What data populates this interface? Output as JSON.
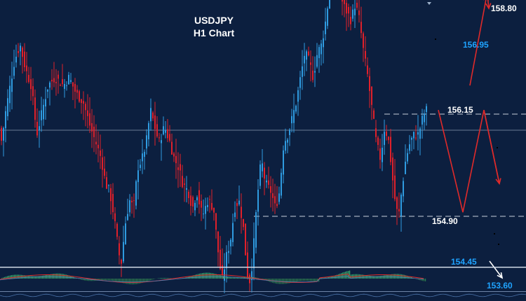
{
  "chart_data": {
    "type": "candlestick",
    "title": "USDJPY",
    "subtitle": "H1 Chart",
    "colors": {
      "background": "#0c1f3f",
      "bull": "#2f9be0",
      "bear": "#e0202a",
      "level_label": "#ffffff",
      "target_label": "#1fa3ff",
      "arrow": "#e02a2a",
      "macd_pos": "#3cb371",
      "macd_neg": "#2e7d4f"
    },
    "levels": [
      {
        "value": "158.80",
        "role": "target-up",
        "price": 158.8
      },
      {
        "value": "156.95",
        "role": "target",
        "price": 156.95
      },
      {
        "value": "156.15",
        "role": "resistance",
        "price": 156.15
      },
      {
        "value": "154.90",
        "role": "support",
        "price": 154.9
      },
      {
        "value": "154.45",
        "role": "target",
        "price": 154.45
      },
      {
        "value": "153.60",
        "role": "target-down",
        "price": 153.6
      }
    ],
    "path": [
      [
        0,
        156.0
      ],
      [
        4,
        155.8
      ],
      [
        8,
        156.1
      ],
      [
        14,
        156.4
      ],
      [
        22,
        156.8
      ],
      [
        30,
        157.0
      ],
      [
        38,
        156.7
      ],
      [
        46,
        156.5
      ],
      [
        54,
        155.9
      ],
      [
        62,
        156.2
      ],
      [
        70,
        156.5
      ],
      [
        80,
        156.6
      ],
      [
        92,
        156.5
      ],
      [
        100,
        156.6
      ],
      [
        110,
        156.4
      ],
      [
        120,
        156.3
      ],
      [
        130,
        156.0
      ],
      [
        138,
        155.8
      ],
      [
        146,
        155.6
      ],
      [
        152,
        155.3
      ],
      [
        158,
        155.2
      ],
      [
        164,
        154.9
      ],
      [
        170,
        154.5
      ],
      [
        174,
        154.3
      ],
      [
        180,
        154.8
      ],
      [
        186,
        155.1
      ],
      [
        192,
        155.0
      ],
      [
        198,
        155.5
      ],
      [
        204,
        155.6
      ],
      [
        210,
        155.8
      ],
      [
        216,
        156.2
      ],
      [
        222,
        156.0
      ],
      [
        228,
        155.8
      ],
      [
        236,
        156.0
      ],
      [
        244,
        155.8
      ],
      [
        250,
        155.6
      ],
      [
        256,
        155.5
      ],
      [
        262,
        155.3
      ],
      [
        270,
        155.2
      ],
      [
        276,
        155.0
      ],
      [
        282,
        155.2
      ],
      [
        290,
        154.9
      ],
      [
        298,
        155.1
      ],
      [
        306,
        155.0
      ],
      [
        312,
        154.5
      ],
      [
        318,
        154.1
      ],
      [
        324,
        154.4
      ],
      [
        330,
        154.6
      ],
      [
        336,
        155.0
      ],
      [
        342,
        155.1
      ],
      [
        348,
        154.8
      ],
      [
        354,
        154.2
      ],
      [
        358,
        154.1
      ],
      [
        362,
        154.4
      ],
      [
        368,
        155.1
      ],
      [
        374,
        155.6
      ],
      [
        380,
        155.3
      ],
      [
        388,
        155.2
      ],
      [
        394,
        155.0
      ],
      [
        400,
        155.2
      ],
      [
        406,
        155.8
      ],
      [
        412,
        155.9
      ],
      [
        418,
        156.1
      ],
      [
        424,
        156.3
      ],
      [
        430,
        156.6
      ],
      [
        436,
        156.9
      ],
      [
        442,
        156.8
      ],
      [
        448,
        156.6
      ],
      [
        454,
        156.9
      ],
      [
        460,
        157.0
      ],
      [
        466,
        157.3
      ],
      [
        472,
        157.7
      ],
      [
        478,
        157.9
      ],
      [
        484,
        157.8
      ],
      [
        490,
        157.5
      ],
      [
        496,
        157.4
      ],
      [
        502,
        157.3
      ],
      [
        508,
        157.5
      ],
      [
        514,
        157.3
      ],
      [
        520,
        156.9
      ],
      [
        526,
        156.6
      ],
      [
        532,
        156.2
      ],
      [
        538,
        155.8
      ],
      [
        544,
        155.6
      ],
      [
        550,
        156.0
      ],
      [
        556,
        155.8
      ],
      [
        562,
        155.3
      ],
      [
        566,
        155.0
      ],
      [
        570,
        154.9
      ],
      [
        574,
        155.2
      ],
      [
        580,
        155.6
      ],
      [
        586,
        155.8
      ],
      [
        592,
        155.9
      ],
      [
        598,
        155.9
      ],
      [
        604,
        156.1
      ],
      [
        608,
        156.2
      ]
    ],
    "forecast_path": [
      [
        625,
        156.2
      ],
      [
        660,
        154.95
      ],
      [
        690,
        156.2
      ],
      [
        712,
        155.3
      ]
    ],
    "forecast_arrows_up": [
      [
        670,
        156.5
      ],
      [
        694,
        157.6
      ],
      [
        694,
        157.6
      ],
      [
        697,
        158.8
      ]
    ],
    "forecast_arrow_down": [
      [
        698,
        154.5
      ],
      [
        716,
        153.8
      ]
    ]
  }
}
